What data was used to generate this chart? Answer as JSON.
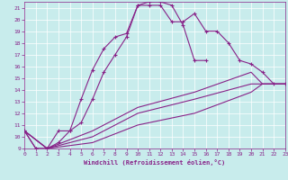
{
  "xlabel": "Windchill (Refroidissement éolien,°C)",
  "background_color": "#c8ecec",
  "line_color": "#882288",
  "grid_color": "#ffffff",
  "xlim": [
    0,
    23
  ],
  "ylim": [
    9,
    21.5
  ],
  "yticks": [
    9,
    10,
    11,
    12,
    13,
    14,
    15,
    16,
    17,
    18,
    19,
    20,
    21
  ],
  "xticks": [
    0,
    1,
    2,
    3,
    4,
    5,
    6,
    7,
    8,
    9,
    10,
    11,
    12,
    13,
    14,
    15,
    16,
    17,
    18,
    19,
    20,
    21,
    22,
    23
  ],
  "line1_x": [
    0,
    1,
    2,
    3,
    4,
    5,
    6,
    7,
    8,
    9,
    10,
    11,
    12,
    13,
    14,
    15,
    16,
    17,
    18,
    19,
    20,
    21,
    22,
    23
  ],
  "line1_y": [
    10.5,
    9.0,
    9.0,
    10.5,
    10.5,
    13.2,
    15.7,
    17.5,
    18.5,
    18.8,
    21.2,
    21.2,
    21.2,
    19.8,
    19.8,
    20.5,
    19.0,
    19.0,
    18.0,
    16.5,
    16.2,
    15.5,
    14.5,
    14.5
  ],
  "line2_x": [
    0,
    1,
    2,
    3,
    4,
    5,
    6,
    7,
    8,
    9,
    10,
    11,
    12,
    13,
    14,
    15,
    16
  ],
  "line2_y": [
    10.5,
    9.0,
    9.0,
    9.5,
    10.5,
    11.2,
    13.2,
    15.5,
    17.0,
    18.5,
    21.2,
    21.5,
    21.5,
    21.2,
    19.5,
    16.5,
    16.5
  ],
  "line3_x": [
    0,
    2,
    6,
    10,
    15,
    20,
    21,
    22,
    23
  ],
  "line3_y": [
    10.5,
    9.0,
    10.5,
    12.5,
    13.8,
    15.5,
    14.5,
    14.5,
    14.5
  ],
  "line4_x": [
    0,
    2,
    6,
    10,
    15,
    20,
    21,
    22,
    23
  ],
  "line4_y": [
    10.5,
    9.0,
    10.0,
    12.0,
    13.2,
    14.5,
    14.5,
    14.5,
    14.5
  ],
  "line5_x": [
    0,
    2,
    6,
    10,
    15,
    20,
    21,
    22,
    23
  ],
  "line5_y": [
    10.5,
    9.0,
    9.5,
    11.0,
    12.0,
    13.8,
    14.5,
    14.5,
    14.5
  ]
}
